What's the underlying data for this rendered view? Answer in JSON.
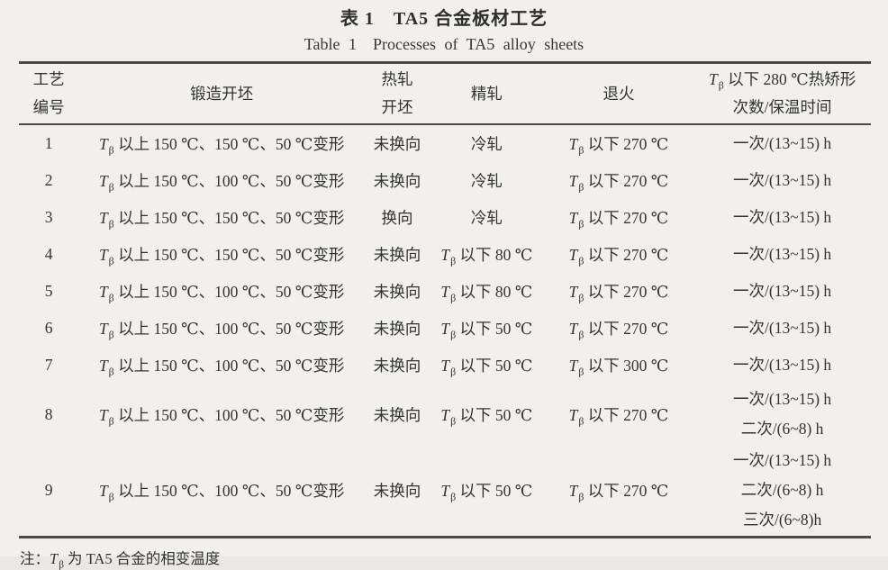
{
  "page": {
    "background_color": "#f1f0ec",
    "text_color": "#333333",
    "rule_color": "#4a4a48"
  },
  "titles": {
    "zh": "表 1　TA5 合金板材工艺",
    "en": "Table 1　Processes of TA5 alloy sheets"
  },
  "table": {
    "header": {
      "process_no": [
        "工艺",
        "编号"
      ],
      "forging": "锻造开坯",
      "hot_rolling": [
        "热轧",
        "开坯"
      ],
      "finish_rolling": "精轧",
      "annealing": "退火",
      "straightening": [
        "Tβ 以下 280 ℃热矫形",
        "次数/保温时间"
      ]
    },
    "rows": [
      {
        "no": "1",
        "forging": "Tβ 以上 150 ℃、150 ℃、50 ℃变形",
        "hot_rolling": "未换向",
        "finish_rolling": "冷轧",
        "annealing": "Tβ 以下 270 ℃",
        "straightening": [
          "一次/(13~15) h"
        ]
      },
      {
        "no": "2",
        "forging": "Tβ 以上 150 ℃、100 ℃、50 ℃变形",
        "hot_rolling": "未换向",
        "finish_rolling": "冷轧",
        "annealing": "Tβ 以下 270 ℃",
        "straightening": [
          "一次/(13~15) h"
        ]
      },
      {
        "no": "3",
        "forging": "Tβ 以上 150 ℃、150 ℃、50 ℃变形",
        "hot_rolling": "换向",
        "finish_rolling": "冷轧",
        "annealing": "Tβ 以下 270 ℃",
        "straightening": [
          "一次/(13~15) h"
        ]
      },
      {
        "no": "4",
        "forging": "Tβ 以上 150 ℃、150 ℃、50 ℃变形",
        "hot_rolling": "未换向",
        "finish_rolling": "Tβ 以下 80 ℃",
        "annealing": "Tβ 以下 270 ℃",
        "straightening": [
          "一次/(13~15) h"
        ]
      },
      {
        "no": "5",
        "forging": "Tβ 以上 150 ℃、100 ℃、50 ℃变形",
        "hot_rolling": "未换向",
        "finish_rolling": "Tβ 以下 80 ℃",
        "annealing": "Tβ 以下 270 ℃",
        "straightening": [
          "一次/(13~15) h"
        ]
      },
      {
        "no": "6",
        "forging": "Tβ 以上 150 ℃、100 ℃、50 ℃变形",
        "hot_rolling": "未换向",
        "finish_rolling": "Tβ 以下 50 ℃",
        "annealing": "Tβ 以下 270 ℃",
        "straightening": [
          "一次/(13~15) h"
        ]
      },
      {
        "no": "7",
        "forging": "Tβ 以上 150 ℃、100 ℃、50 ℃变形",
        "hot_rolling": "未换向",
        "finish_rolling": "Tβ 以下 50 ℃",
        "annealing": "Tβ 以下 300 ℃",
        "straightening": [
          "一次/(13~15) h"
        ]
      },
      {
        "no": "8",
        "forging": "Tβ 以上 150 ℃、100 ℃、50 ℃变形",
        "hot_rolling": "未换向",
        "finish_rolling": "Tβ 以下 50 ℃",
        "annealing": "Tβ 以下 270 ℃",
        "straightening": [
          "一次/(13~15) h",
          "二次/(6~8) h"
        ]
      },
      {
        "no": "9",
        "forging": "Tβ 以上 150 ℃、100 ℃、50 ℃变形",
        "hot_rolling": "未换向",
        "finish_rolling": "Tβ 以下 50 ℃",
        "annealing": "Tβ 以下 270 ℃",
        "straightening": [
          "一次/(13~15) h",
          "二次/(6~8) h",
          "三次/(6~8)h"
        ]
      }
    ]
  },
  "note": "注：Tβ 为 TA5 合金的相变温度"
}
